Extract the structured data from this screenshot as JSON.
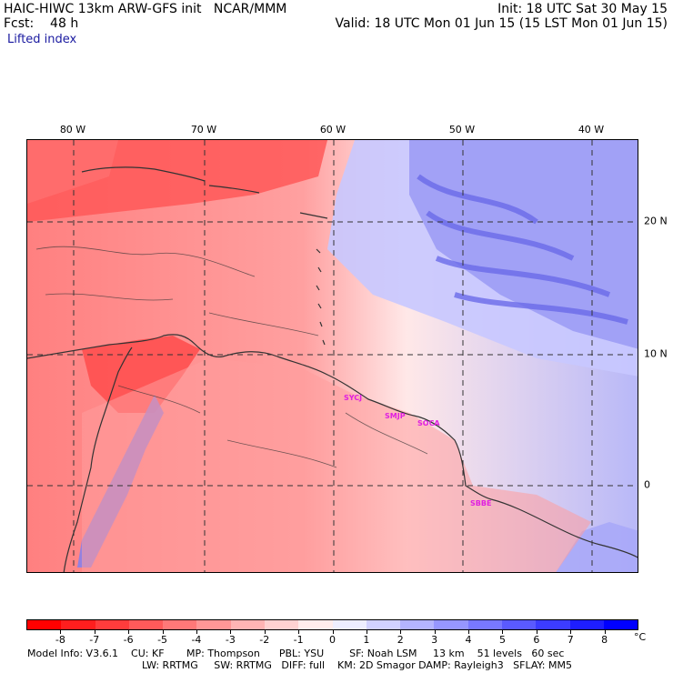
{
  "header": {
    "line1_left": "HAIC-HIWC 13km ARW-GFS init   NCAR/MMM",
    "line1_right": "Init: 18 UTC Sat 30 May 15",
    "line2_left": "Fcst:    48 h",
    "line2_right": "Valid: 18 UTC Mon 01 Jun 15 (15 LST Mon 01 Jun 15)",
    "field_name": "Lifted index"
  },
  "map": {
    "lon_labels": [
      "80 W",
      "70 W",
      "60 W",
      "50 W",
      "40 W"
    ],
    "lat_labels": [
      "20 N",
      "10 N",
      "0"
    ],
    "stations": [
      "SYCJ",
      "SMJP",
      "SOCA",
      "SBBE"
    ]
  },
  "colorbar": {
    "unit": "°C",
    "tick_labels": [
      "-8",
      "-7",
      "-6",
      "-5",
      "-4",
      "-3",
      "-2",
      "-1",
      "0",
      "1",
      "2",
      "3",
      "4",
      "5",
      "6",
      "7",
      "8"
    ],
    "colors": [
      "#ff0000",
      "#ff1e1e",
      "#ff3c3c",
      "#ff5a5a",
      "#ff7878",
      "#ff9696",
      "#ffb4b4",
      "#ffd2d2",
      "#ffecec",
      "#eeeeff",
      "#d2d2ff",
      "#b4b4ff",
      "#9696ff",
      "#7878ff",
      "#5a5aff",
      "#3c3cff",
      "#1e1eff",
      "#0000ff"
    ]
  },
  "footer": {
    "line1": "Model Info: V3.6.1    CU: KF       MP: Thompson      PBL: YSU        SF: Noah LSM     13 km    51 levels   60 sec",
    "line2": "LW: RRTMG     SW: RRTMG   DIFF: full    KM: 2D Smagor DAMP: Rayleigh3   SFLAY: MM5"
  }
}
